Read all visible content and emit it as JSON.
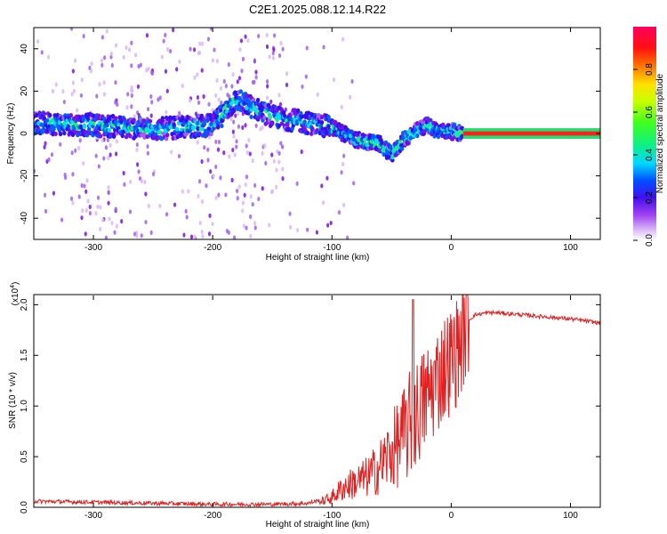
{
  "title": "C2E1.2025.088.12.14.R22",
  "colors": {
    "snr_line": "#e02020",
    "colormap": [
      "#ffffff",
      "#d8b8f8",
      "#a060f0",
      "#7a10e8",
      "#3010f0",
      "#0060ff",
      "#00e0f0",
      "#20f070",
      "#80ff00",
      "#f0f000",
      "#ff8000",
      "#ff0000",
      "#ff0080"
    ]
  },
  "chart_data": [
    {
      "type": "heatmap",
      "xlabel": "Height of straight line (km)",
      "ylabel": "Frequency (Hz)",
      "xlim": [
        -350,
        125
      ],
      "ylim": [
        -50,
        50
      ],
      "xticks": [
        -300,
        -200,
        -100,
        0,
        100
      ],
      "xtick_labels": [
        "-300",
        "-200",
        "-100",
        "0",
        "100"
      ],
      "yticks": [
        -40,
        -20,
        0,
        20,
        40
      ],
      "ytick_labels": [
        "-40",
        "-20",
        "0",
        "20",
        "40"
      ],
      "colorbar": {
        "label": "Normalized spectral amplitude",
        "range": [
          0,
          1
        ],
        "ticks": [
          0.0,
          0.2,
          0.4,
          0.6,
          0.8
        ],
        "tick_labels": [
          "0.0",
          "0.2",
          "0.4",
          "0.6",
          "0.8"
        ]
      },
      "ridge": {
        "x": [
          -350,
          -300,
          -250,
          -200,
          -180,
          -150,
          -120,
          -100,
          -80,
          -60,
          -50,
          -40,
          -30,
          -20,
          -10,
          0,
          10,
          125
        ],
        "y": [
          5,
          4,
          2,
          4,
          16,
          8,
          5,
          3,
          -3,
          -5,
          -10,
          -3,
          1,
          4,
          1,
          1,
          0,
          0
        ]
      }
    },
    {
      "type": "line",
      "xlabel": "Height of straight line (km)",
      "ylabel": "SNR (10 * v/v)",
      "scale_label": "(x10",
      "scale_exp": "4",
      "scale_close": ")",
      "xlim": [
        -350,
        125
      ],
      "ylim": [
        0,
        2.1
      ],
      "xticks": [
        -300,
        -200,
        -100,
        0,
        100
      ],
      "xtick_labels": [
        "-300",
        "-200",
        "-100",
        "0",
        "100"
      ],
      "yticks": [
        0.0,
        0.5,
        1.0,
        1.5,
        2.0
      ],
      "ytick_labels": [
        "0.0",
        "0.5",
        "1.0",
        "1.5",
        "2.0"
      ],
      "series": [
        {
          "envelope_x": [
            -350,
            -300,
            -250,
            -200,
            -150,
            -120,
            -110,
            -100,
            -90,
            -80,
            -70,
            -60,
            -50,
            -40,
            -35,
            -30,
            -25,
            -20,
            -15,
            -10,
            -5,
            0,
            5,
            10,
            15,
            20,
            30,
            40,
            50,
            60,
            80,
            100,
            125
          ],
          "envelope_y": [
            0.04,
            0.03,
            0.02,
            0.01,
            0.01,
            0.02,
            0.05,
            0.1,
            0.2,
            0.25,
            0.3,
            0.4,
            0.55,
            0.7,
            0.8,
            0.9,
            1.0,
            1.1,
            1.2,
            1.3,
            1.4,
            1.45,
            1.55,
            1.7,
            1.85,
            1.9,
            1.92,
            1.92,
            1.91,
            1.9,
            1.88,
            1.86,
            1.82
          ]
        }
      ]
    }
  ]
}
